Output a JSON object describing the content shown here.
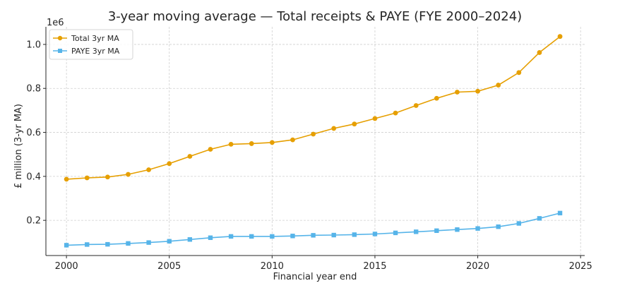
{
  "chart_data": {
    "type": "line",
    "title": "3-year moving average — Total receipts & PAYE (FYE 2000–2024)",
    "xlabel": "Financial year end",
    "ylabel": "£ million (3-yr MA)",
    "y_offset_label": "1e6",
    "xlim": [
      1999,
      2025.2
    ],
    "ylim": [
      0.04,
      1.08
    ],
    "xticks": [
      2000,
      2005,
      2010,
      2015,
      2020,
      2025
    ],
    "yticks": [
      0.2,
      0.4,
      0.6,
      0.8,
      1.0
    ],
    "ytick_labels": [
      "0.2",
      "0.4",
      "0.6",
      "0.8",
      "1.0"
    ],
    "grid": true,
    "legend_position": "top-left",
    "x": [
      2000,
      2001,
      2002,
      2003,
      2004,
      2005,
      2006,
      2007,
      2008,
      2009,
      2010,
      2011,
      2012,
      2013,
      2014,
      2015,
      2016,
      2017,
      2018,
      2019,
      2020,
      2021,
      2022,
      2023,
      2024
    ],
    "series": [
      {
        "name": "Total 3yr MA",
        "color": "#e69f00",
        "marker": "circle",
        "values": [
          0.387,
          0.393,
          0.397,
          0.409,
          0.43,
          0.458,
          0.491,
          0.523,
          0.546,
          0.549,
          0.554,
          0.566,
          0.592,
          0.618,
          0.638,
          0.663,
          0.688,
          0.722,
          0.755,
          0.783,
          0.787,
          0.815,
          0.872,
          0.963,
          1.036
        ]
      },
      {
        "name": "PAYE 3yr MA",
        "color": "#56b4e9",
        "marker": "square",
        "values": [
          0.087,
          0.09,
          0.091,
          0.095,
          0.099,
          0.105,
          0.113,
          0.121,
          0.127,
          0.127,
          0.127,
          0.129,
          0.132,
          0.133,
          0.135,
          0.138,
          0.143,
          0.148,
          0.153,
          0.158,
          0.163,
          0.171,
          0.186,
          0.209,
          0.233
        ]
      }
    ]
  }
}
